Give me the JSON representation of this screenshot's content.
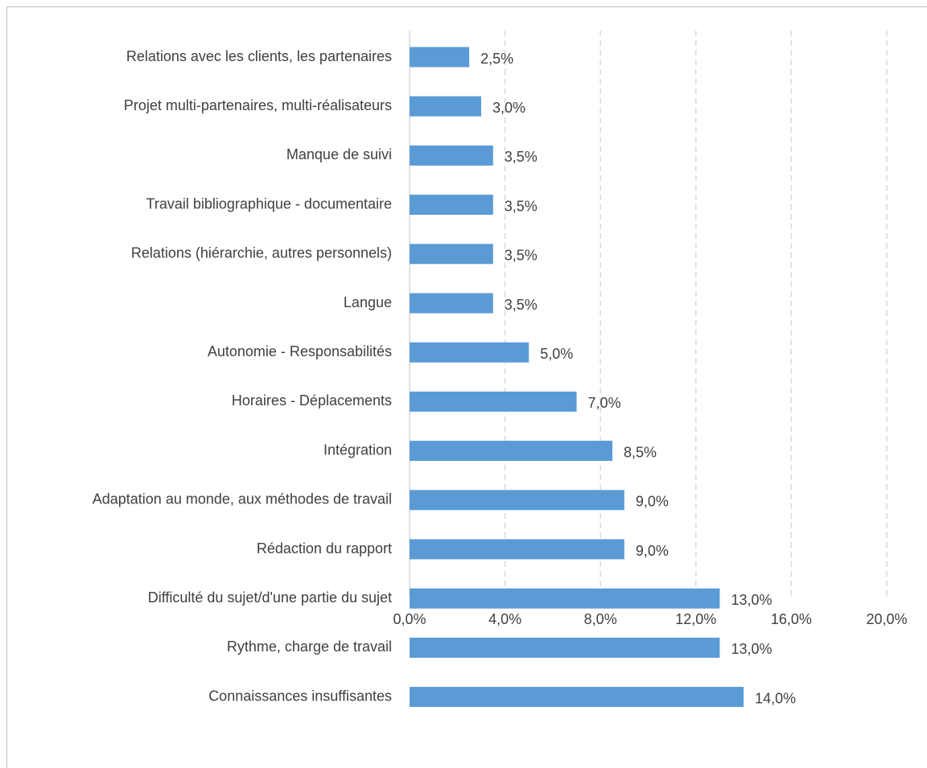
{
  "chart_data": {
    "type": "bar",
    "orientation": "horizontal",
    "title": "",
    "xlabel": "",
    "ylabel": "",
    "categories": [
      "Relations avec les clients, les partenaires",
      "Projet multi-partenaires, multi-réalisateurs",
      "Manque de suivi",
      "Travail bibliographique - documentaire",
      "Relations (hiérarchie, autres personnels)",
      "Langue",
      "Autonomie - Responsabilités",
      "Horaires - Déplacements",
      "Intégration",
      "Adaptation au monde, aux méthodes de travail",
      "Rédaction du rapport",
      "Difficulté du sujet/d'une partie du sujet",
      "Rythme, charge de travail",
      "Connaissances insuffisantes"
    ],
    "values": [
      2.5,
      3.0,
      3.5,
      3.5,
      3.5,
      3.5,
      5.0,
      7.0,
      8.5,
      9.0,
      9.0,
      13.0,
      13.0,
      14.0
    ],
    "value_labels": [
      "2,5%",
      "3,0%",
      "3,5%",
      "3,5%",
      "3,5%",
      "3,5%",
      "5,0%",
      "7,0%",
      "8,5%",
      "9,0%",
      "9,0%",
      "13,0%",
      "13,0%",
      "14,0%"
    ],
    "xlim": [
      0,
      20
    ],
    "x_ticks": [
      0,
      4,
      8,
      12,
      16,
      20
    ],
    "x_tick_labels": [
      "0,0%",
      "4,0%",
      "8,0%",
      "12,0%",
      "16,0%",
      "20,0%"
    ],
    "grid": "vertical-dashed",
    "legend": "none",
    "bar_color": "#5b9bd5",
    "text_color": "#404040",
    "grid_color": "#d9d9d9"
  }
}
